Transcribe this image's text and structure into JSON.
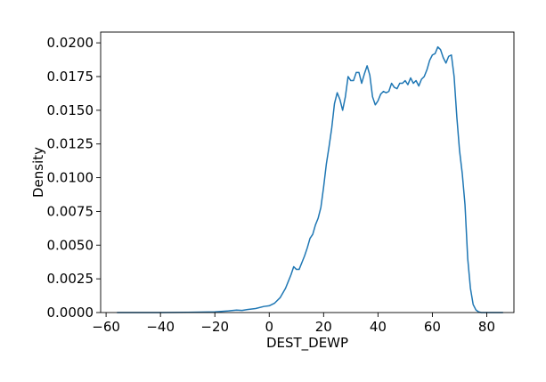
{
  "chart_data": {
    "type": "line",
    "title": "",
    "xlabel": "DEST_DEWP",
    "ylabel": "Density",
    "xlim": [
      -62,
      90
    ],
    "ylim": [
      0,
      0.0208
    ],
    "xticks": [
      -60,
      -40,
      -20,
      0,
      20,
      40,
      60,
      80
    ],
    "xtick_labels": [
      "−60",
      "−40",
      "−20",
      "0",
      "20",
      "40",
      "60",
      "80"
    ],
    "yticks": [
      0,
      0.0025,
      0.005,
      0.0075,
      0.01,
      0.0125,
      0.015,
      0.0175,
      0.02
    ],
    "ytick_labels": [
      "0.0000",
      "0.0025",
      "0.0050",
      "0.0075",
      "0.0100",
      "0.0125",
      "0.0150",
      "0.0175",
      "0.0200"
    ],
    "grid": false,
    "legend": "none",
    "series": [
      {
        "color": "#1f77b4",
        "x": [
          -56,
          -50,
          -40,
          -30,
          -25,
          -20,
          -15,
          -12,
          -10,
          -8,
          -5,
          -2,
          0,
          2,
          4,
          6,
          7,
          8,
          9,
          10,
          11,
          12,
          13,
          14,
          15,
          16,
          17,
          18,
          19,
          20,
          21,
          22,
          23,
          24,
          25,
          26,
          27,
          28,
          29,
          30,
          31,
          32,
          33,
          34,
          35,
          36,
          37,
          38,
          39,
          40,
          41,
          42,
          43,
          44,
          45,
          46,
          47,
          48,
          49,
          50,
          51,
          52,
          53,
          54,
          55,
          56,
          57,
          58,
          59,
          60,
          61,
          62,
          63,
          64,
          65,
          66,
          67,
          68,
          69,
          70,
          71,
          72,
          73,
          74,
          75,
          76,
          77,
          78,
          79,
          80,
          81,
          82,
          83,
          86
        ],
        "y": [
          0,
          0,
          0,
          2e-05,
          3e-05,
          5e-05,
          0.00012,
          0.00018,
          0.00016,
          0.00022,
          0.0003,
          0.00045,
          0.0005,
          0.0007,
          0.0011,
          0.0018,
          0.0023,
          0.0028,
          0.0034,
          0.0032,
          0.0032,
          0.0037,
          0.0042,
          0.0048,
          0.0055,
          0.0058,
          0.0065,
          0.007,
          0.0078,
          0.0093,
          0.011,
          0.0123,
          0.0137,
          0.0155,
          0.0163,
          0.0158,
          0.015,
          0.016,
          0.0175,
          0.0172,
          0.0172,
          0.0178,
          0.0178,
          0.017,
          0.0177,
          0.0183,
          0.0176,
          0.016,
          0.0154,
          0.0157,
          0.0162,
          0.0164,
          0.0163,
          0.0164,
          0.017,
          0.0167,
          0.0166,
          0.017,
          0.017,
          0.0172,
          0.0169,
          0.0174,
          0.017,
          0.0172,
          0.0168,
          0.0173,
          0.0175,
          0.018,
          0.0187,
          0.0191,
          0.0192,
          0.0197,
          0.0195,
          0.0189,
          0.0185,
          0.019,
          0.0191,
          0.0175,
          0.0145,
          0.012,
          0.0103,
          0.008,
          0.004,
          0.0018,
          0.0006,
          0.0002,
          5e-05,
          0,
          0,
          0,
          0,
          0,
          0,
          0
        ]
      }
    ]
  }
}
